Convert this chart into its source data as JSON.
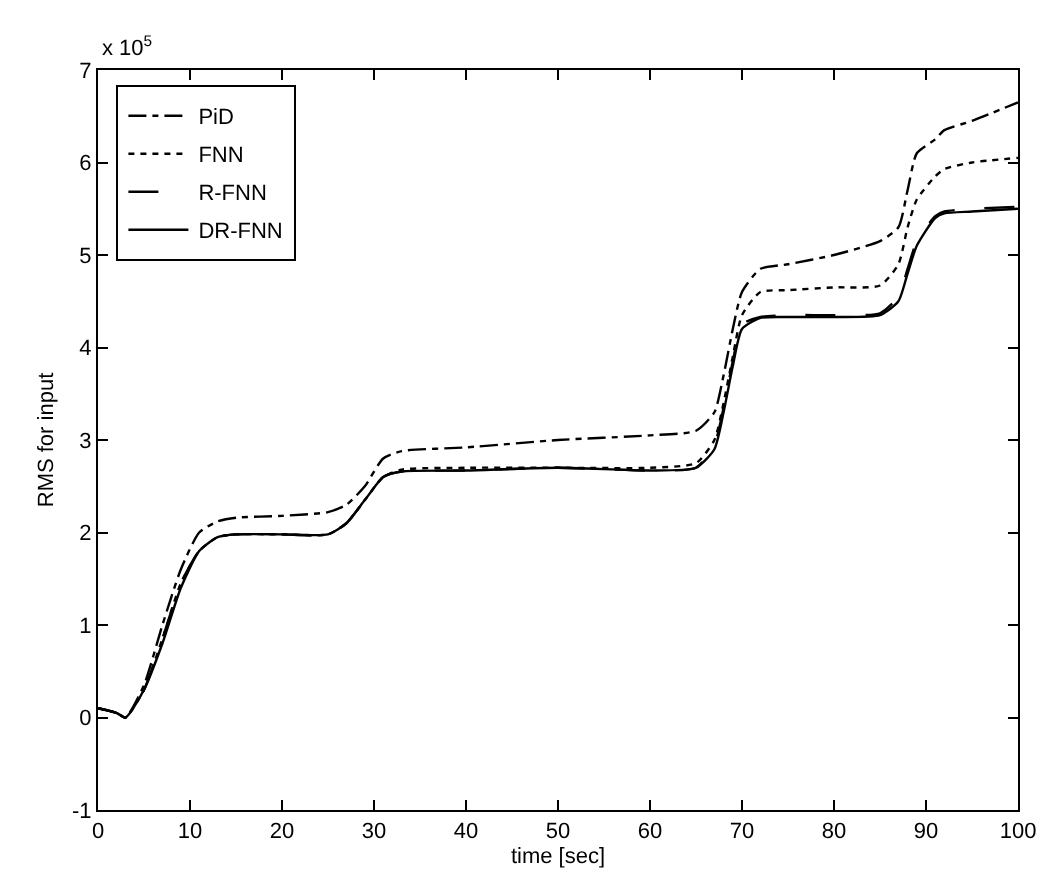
{
  "chart_data": {
    "type": "line",
    "xlabel": "time [sec]",
    "ylabel": "RMS for input",
    "annotations": [
      "x 10$^{5}$"
    ],
    "x": [
      0,
      2,
      3,
      5,
      7,
      9,
      11,
      13,
      15,
      20,
      25,
      27,
      29,
      31,
      33,
      40,
      50,
      60,
      65,
      67,
      68,
      69,
      70,
      72,
      75,
      80,
      85,
      87,
      88,
      89,
      91,
      92,
      95,
      100
    ],
    "series": [
      {
        "name": "PiD",
        "color": "#000000",
        "line_style": "dashdot",
        "values": [
          0.1,
          0.05,
          0,
          0.35,
          1.0,
          1.6,
          2.0,
          2.12,
          2.16,
          2.18,
          2.22,
          2.3,
          2.5,
          2.8,
          2.88,
          2.92,
          3.0,
          3.05,
          3.1,
          3.3,
          3.7,
          4.2,
          4.6,
          4.85,
          4.9,
          5.0,
          5.15,
          5.3,
          5.7,
          6.1,
          6.25,
          6.35,
          6.45,
          6.65
        ]
      },
      {
        "name": "FNN",
        "color": "#000000",
        "line_style": "dotted",
        "values": [
          0.1,
          0.05,
          0,
          0.3,
          0.85,
          1.45,
          1.8,
          1.95,
          1.98,
          1.98,
          1.98,
          2.1,
          2.35,
          2.6,
          2.68,
          2.7,
          2.7,
          2.7,
          2.75,
          3.0,
          3.4,
          3.9,
          4.35,
          4.6,
          4.62,
          4.65,
          4.67,
          4.9,
          5.3,
          5.6,
          5.85,
          5.93,
          6.0,
          6.05
        ]
      },
      {
        "name": "R-FNN",
        "color": "#000000",
        "line_style": "dashed",
        "values": [
          0.1,
          0.05,
          0,
          0.3,
          0.85,
          1.45,
          1.8,
          1.95,
          1.98,
          1.98,
          1.98,
          2.1,
          2.35,
          2.6,
          2.66,
          2.67,
          2.7,
          2.67,
          2.7,
          2.95,
          3.35,
          3.85,
          4.25,
          4.33,
          4.35,
          4.35,
          4.37,
          4.55,
          4.85,
          5.15,
          5.42,
          5.47,
          5.5,
          5.52
        ]
      },
      {
        "name": "DR-FNN",
        "color": "#000000",
        "line_style": "solid",
        "values": [
          0.1,
          0.05,
          0,
          0.3,
          0.8,
          1.4,
          1.8,
          1.95,
          1.98,
          1.98,
          1.98,
          2.1,
          2.35,
          2.6,
          2.66,
          2.67,
          2.7,
          2.67,
          2.7,
          2.9,
          3.3,
          3.8,
          4.2,
          4.32,
          4.33,
          4.33,
          4.35,
          4.5,
          4.8,
          5.1,
          5.4,
          5.45,
          5.47,
          5.5
        ]
      }
    ],
    "xlim": [
      0,
      100
    ],
    "xticks": [
      0,
      10,
      20,
      30,
      40,
      50,
      60,
      70,
      80,
      90,
      100
    ],
    "ylim": [
      -1,
      7
    ],
    "yticks": [
      -1,
      0,
      1,
      2,
      3,
      4,
      5,
      6,
      7
    ],
    "legend": "top left",
    "marker": "none"
  }
}
